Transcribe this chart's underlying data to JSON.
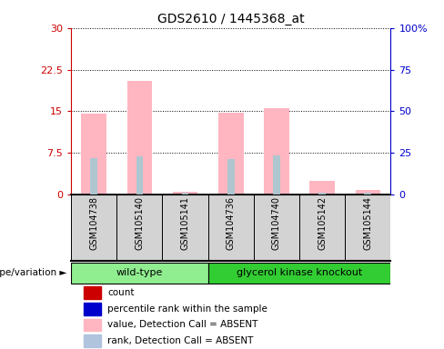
{
  "title": "GDS2610 / 1445368_at",
  "samples": [
    "GSM104738",
    "GSM105140",
    "GSM105141",
    "GSM104736",
    "GSM104740",
    "GSM105142",
    "GSM105144"
  ],
  "groups": [
    {
      "name": "wild-type",
      "indices": [
        0,
        1,
        2
      ],
      "color": "#90ee90"
    },
    {
      "name": "glycerol kinase knockout",
      "indices": [
        3,
        4,
        5,
        6
      ],
      "color": "#32cd32"
    }
  ],
  "pink_bars": [
    14.5,
    20.5,
    0.45,
    14.7,
    15.5,
    2.5,
    0.85
  ],
  "blue_bars": [
    6.5,
    6.8,
    0.35,
    6.4,
    7.0,
    0.4,
    0.4
  ],
  "ylim_left": [
    0,
    30
  ],
  "ylim_right": [
    0,
    100
  ],
  "yticks_left": [
    0,
    7.5,
    15,
    22.5,
    30
  ],
  "ytick_labels_left": [
    "0",
    "7.5",
    "15",
    "22.5",
    "30"
  ],
  "yticks_right": [
    0,
    25,
    50,
    75,
    100
  ],
  "ytick_labels_right": [
    "0",
    "25",
    "50",
    "75",
    "100%"
  ],
  "legend_items": [
    {
      "label": "count",
      "color": "#cc0000"
    },
    {
      "label": "percentile rank within the sample",
      "color": "#0000cc"
    },
    {
      "label": "value, Detection Call = ABSENT",
      "color": "#ffb6c1"
    },
    {
      "label": "rank, Detection Call = ABSENT",
      "color": "#b0c4de"
    }
  ],
  "left_tick_color": "#cc0000",
  "right_tick_color": "#0000cc",
  "genotype_label": "genotype/variation",
  "sample_box_color": "#d3d3d3",
  "background_color": "#ffffff"
}
